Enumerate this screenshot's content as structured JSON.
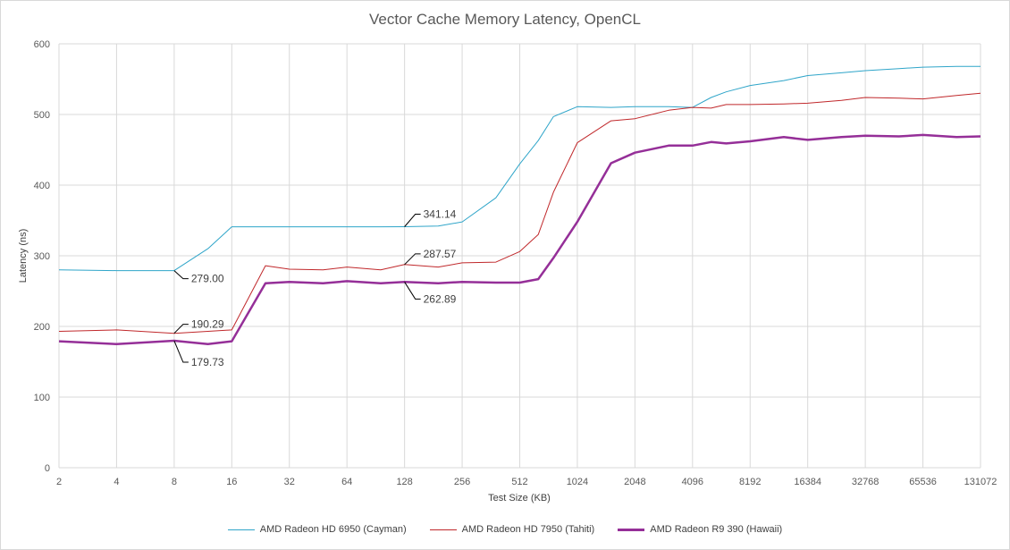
{
  "chart_data": {
    "type": "line",
    "title": "Vector Cache Memory Latency, OpenCL",
    "xlabel": "Test Size (KB)",
    "ylabel": "Latency (ns)",
    "ylim": [
      0,
      600
    ],
    "y_ticks": [
      "0",
      "100",
      "200",
      "300",
      "400",
      "500",
      "600"
    ],
    "x_scale": "log2",
    "x_tick_labels": [
      "2",
      "4",
      "8",
      "16",
      "32",
      "64",
      "128",
      "256",
      "512",
      "1024",
      "2048",
      "4096",
      "8192",
      "16384",
      "32768",
      "65536",
      "131072"
    ],
    "x": [
      2,
      4,
      8,
      12,
      16,
      24,
      32,
      48,
      64,
      96,
      128,
      192,
      256,
      384,
      512,
      640,
      768,
      1024,
      1536,
      2048,
      3072,
      4096,
      5120,
      6144,
      8192,
      12288,
      16384,
      24576,
      32768,
      49152,
      65536,
      98304,
      131072
    ],
    "grid": "vertical and horizontal gridlines",
    "legend_position": "bottom",
    "series": [
      {
        "name": "AMD Radeon HD 6950 (Cayman)",
        "color": "#2fa5c9",
        "values": [
          280,
          279,
          279,
          310,
          341,
          341,
          341,
          341,
          341,
          341,
          341.14,
          342,
          348,
          382,
          430,
          463,
          497,
          511,
          510,
          511,
          511,
          510,
          524,
          532,
          541,
          548,
          555,
          559,
          562,
          565,
          567,
          568,
          568
        ]
      },
      {
        "name": "AMD Radeon HD 7950 (Tahiti)",
        "color": "#c0282b",
        "values": [
          193,
          195,
          190.29,
          193,
          195,
          286,
          281,
          280,
          284,
          280,
          287.57,
          284,
          290,
          291,
          306,
          330,
          390,
          460,
          491,
          494,
          506,
          510,
          509,
          514,
          514,
          515,
          516,
          520,
          524,
          523,
          522,
          527,
          530
        ]
      },
      {
        "name": "AMD Radeon R9 390 (Hawaii)",
        "color": "#952f98",
        "values": [
          179,
          175,
          179.73,
          175,
          179,
          261,
          263,
          261,
          264,
          261,
          262.89,
          261,
          263,
          262,
          262,
          267,
          297,
          348,
          431,
          446,
          456,
          456,
          461,
          459,
          462,
          468,
          464,
          468,
          470,
          469,
          471,
          468,
          469
        ]
      }
    ],
    "annotations": [
      {
        "series": 0,
        "x": 8,
        "text": "279.00"
      },
      {
        "series": 0,
        "x": 128,
        "text": "341.14"
      },
      {
        "series": 1,
        "x": 8,
        "text": "190.29"
      },
      {
        "series": 1,
        "x": 128,
        "text": "287.57"
      },
      {
        "series": 2,
        "x": 8,
        "text": "179.73"
      },
      {
        "series": 2,
        "x": 128,
        "text": "262.89"
      }
    ]
  }
}
